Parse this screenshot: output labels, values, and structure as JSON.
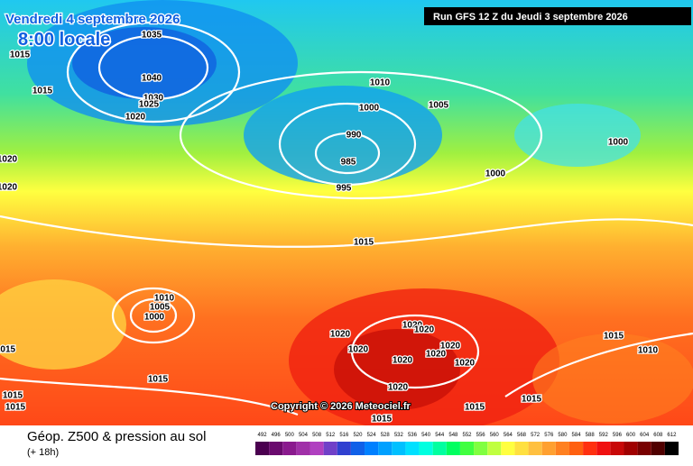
{
  "header": {
    "date": "Vendredi 4 septembre 2026",
    "time": "8:00 locale",
    "run": "Run GFS 12 Z du Jeudi 3 septembre 2026"
  },
  "isobar_labels": [
    "1035",
    "1015",
    "1040",
    "1015",
    "1030",
    "1025",
    "1020",
    "1010",
    "1000",
    "1005",
    "990",
    "1000",
    "985",
    "1020",
    "1000",
    "995",
    "1020",
    "1015",
    "1010",
    "1005",
    "1000",
    "1020",
    "1020",
    "1020",
    "1015",
    "1020",
    "1020",
    "1010",
    "1015",
    "1020",
    "1020",
    "1020",
    "1015",
    "1020",
    "1015",
    "1015",
    "1015",
    "1015",
    "1015"
  ],
  "copyright": "Copyright © 2026 Meteociel.fr",
  "footer": {
    "title": "Géop. Z500 & pression au sol",
    "lead": "(+ 18h)"
  },
  "legend": {
    "ticks": [
      492,
      496,
      500,
      504,
      508,
      512,
      516,
      520,
      524,
      528,
      532,
      536,
      540,
      544,
      548,
      552,
      556,
      560,
      564,
      568,
      572,
      576,
      580,
      584,
      588,
      592,
      596,
      600,
      604,
      608,
      612
    ],
    "colors": [
      "#4b0050",
      "#6a0a6e",
      "#8a1a8e",
      "#a030a8",
      "#b040c0",
      "#7040c8",
      "#3040d0",
      "#1060e8",
      "#0080ff",
      "#00a0ff",
      "#00c0ff",
      "#00e0ff",
      "#00ffe0",
      "#00ffa0",
      "#00ff60",
      "#40ff40",
      "#80ff40",
      "#c0ff40",
      "#ffff40",
      "#ffe040",
      "#ffc040",
      "#ffa030",
      "#ff8020",
      "#ff6010",
      "#ff3010",
      "#f01010",
      "#c80808",
      "#a00000",
      "#780000",
      "#500000",
      "#000000"
    ]
  }
}
